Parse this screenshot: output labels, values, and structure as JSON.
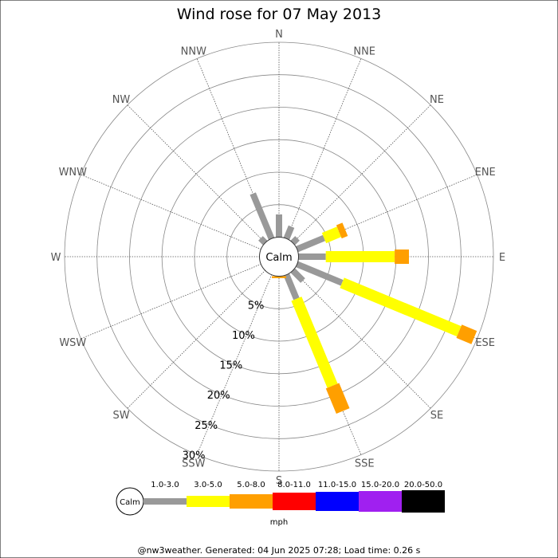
{
  "chart_data": {
    "type": "wind-rose",
    "title": "Wind rose for 07 May 2013",
    "directions": [
      "N",
      "NNE",
      "NE",
      "ENE",
      "E",
      "ESE",
      "SE",
      "SSE",
      "S",
      "SSW",
      "SW",
      "WSW",
      "W",
      "WNW",
      "NW",
      "NNW"
    ],
    "ring_labels": [
      "5%",
      "10%",
      "15%",
      "20%",
      "25%",
      "30%"
    ],
    "rings": [
      5,
      10,
      15,
      20,
      25,
      30
    ],
    "calm_label": "Calm",
    "unit": "mph",
    "bins": [
      {
        "label": "1.0-3.0",
        "color": "#999999"
      },
      {
        "label": "3.0-5.0",
        "color": "#ffff00"
      },
      {
        "label": "5.0-8.0",
        "color": "#ff9f00"
      },
      {
        "label": "8.0-11.0",
        "color": "#ff0000"
      },
      {
        "label": "11.0-15.0",
        "color": "#0000ff"
      },
      {
        "label": "15.0-20.0",
        "color": "#a020f0"
      },
      {
        "label": "20.0-50.0",
        "color": "#000000"
      }
    ],
    "series": [
      {
        "direction": "N",
        "values": [
          3.5,
          0,
          0,
          0,
          0,
          0,
          0
        ]
      },
      {
        "direction": "NNE",
        "values": [
          2.0,
          0,
          0,
          0,
          0,
          0,
          0
        ]
      },
      {
        "direction": "NE",
        "values": [
          1.0,
          0,
          0,
          0,
          0,
          0,
          0
        ]
      },
      {
        "direction": "ENE",
        "values": [
          4.5,
          2.5,
          1.0,
          0,
          0,
          0,
          0
        ]
      },
      {
        "direction": "E",
        "values": [
          4.2,
          10.6,
          2.2,
          0,
          0,
          0,
          0
        ]
      },
      {
        "direction": "ESE",
        "values": [
          7.5,
          19.5,
          2.5,
          0,
          0,
          0,
          0
        ]
      },
      {
        "direction": "SE",
        "values": [
          2.2,
          0,
          0,
          0,
          0,
          0,
          0
        ]
      },
      {
        "direction": "SSE",
        "values": [
          4.0,
          14.5,
          4.2,
          0,
          0,
          0,
          0
        ]
      },
      {
        "direction": "S",
        "values": [
          0.0,
          0.0,
          0.3,
          0,
          0,
          0,
          0
        ]
      },
      {
        "direction": "SSW",
        "values": [
          0,
          0,
          0,
          0,
          0,
          0,
          0
        ]
      },
      {
        "direction": "SW",
        "values": [
          0,
          0,
          0,
          0,
          0,
          0,
          0
        ]
      },
      {
        "direction": "WSW",
        "values": [
          0,
          0,
          0,
          0,
          0,
          0,
          0
        ]
      },
      {
        "direction": "W",
        "values": [
          0,
          0,
          0,
          0,
          0,
          0,
          0
        ]
      },
      {
        "direction": "WNW",
        "values": [
          0,
          0,
          0,
          0,
          0,
          0,
          0
        ]
      },
      {
        "direction": "NW",
        "values": [
          1.0,
          0,
          0,
          0,
          0,
          0,
          0
        ]
      },
      {
        "direction": "NNW",
        "values": [
          7.5,
          0,
          0,
          0,
          0,
          0,
          0
        ]
      }
    ]
  },
  "footer": "@nw3weather. Generated: 04 Jun 2025 07:28; Load time: 0.26 s"
}
